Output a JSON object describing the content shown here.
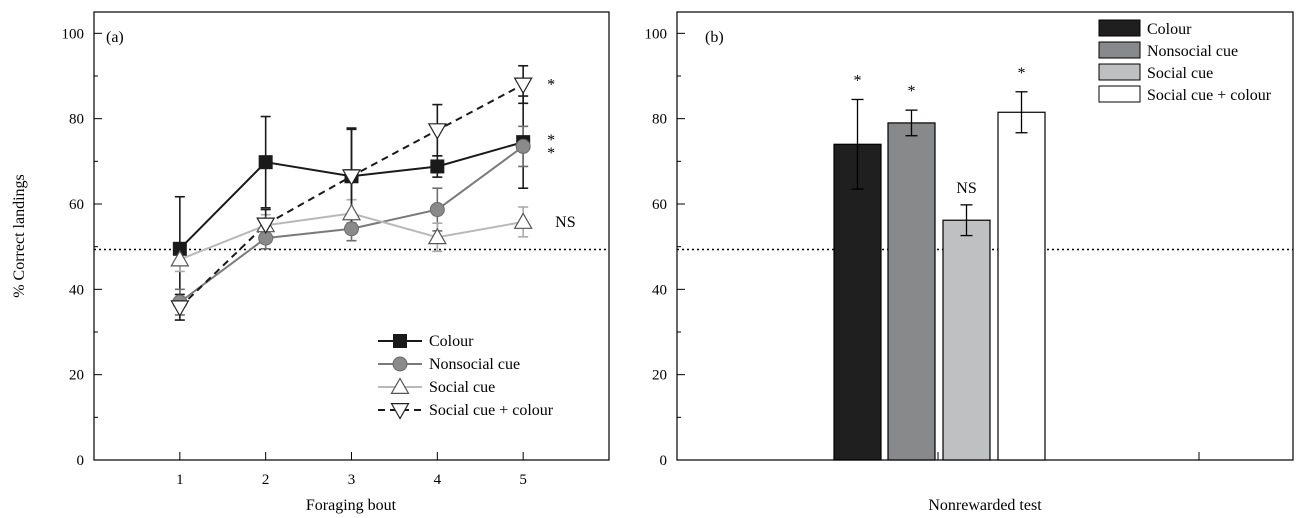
{
  "reference_line": 50,
  "chart_data": [
    {
      "type": "line",
      "panel_label": "(a)",
      "xlabel": "Foraging bout",
      "ylabel": "% Correct landings",
      "x": [
        1,
        2,
        3,
        4,
        5
      ],
      "xlim": [
        0,
        6
      ],
      "ylim": [
        0,
        105
      ],
      "yticks": [
        0,
        20,
        40,
        60,
        80,
        100
      ],
      "grid": false,
      "legend_position": "bottom-right",
      "reference_line": 50,
      "series": [
        {
          "name": "Colour",
          "marker": "filled-square",
          "color": "#1a1a1a",
          "dash": "solid",
          "values": [
            49.5,
            69.8,
            66.5,
            68.8,
            74.5
          ],
          "error": [
            12.2,
            10.7,
            11.3,
            2.5,
            10.8
          ],
          "significance": "*"
        },
        {
          "name": "Nonsocial cue",
          "marker": "filled-circle",
          "color": "#7a7a7a",
          "dash": "solid",
          "values": [
            37,
            52,
            54.2,
            58.7,
            73.5
          ],
          "error": [
            3,
            2.5,
            2.8,
            5,
            4.7
          ],
          "significance": "*"
        },
        {
          "name": "Social cue",
          "marker": "open-triangle-up",
          "color": "#b4b4b4",
          "dash": "solid",
          "values": [
            47,
            55,
            57.8,
            52.2,
            55.8
          ],
          "error": [
            2.8,
            2.5,
            3.2,
            3.3,
            3.5
          ],
          "significance": "NS"
        },
        {
          "name": "Social cue + colour",
          "marker": "open-triangle-down",
          "color": "#1a1a1a",
          "dash": "dashed",
          "values": [
            35.8,
            55.2,
            66.5,
            77.3,
            88
          ],
          "error": [
            3,
            3.5,
            11,
            6,
            4.4
          ],
          "significance": "*"
        }
      ]
    },
    {
      "type": "bar",
      "panel_label": "(b)",
      "xlabel": "Nonrewarded test",
      "ylabel": "",
      "ylim": [
        0,
        105
      ],
      "yticks": [
        0,
        20,
        40,
        60,
        80,
        100
      ],
      "grid": false,
      "legend_position": "top-right",
      "reference_line": 50,
      "categories": [
        "Colour",
        "Nonsocial cue",
        "Social cue",
        "Social cue + colour"
      ],
      "values": [
        74,
        79,
        56.2,
        81.5
      ],
      "error": [
        10.5,
        3,
        3.6,
        4.8
      ],
      "significance": [
        "*",
        "*",
        "NS",
        "*"
      ],
      "colors": [
        "#1f1f1f",
        "#88898b",
        "#bfc0c2",
        "#ffffff"
      ]
    }
  ]
}
